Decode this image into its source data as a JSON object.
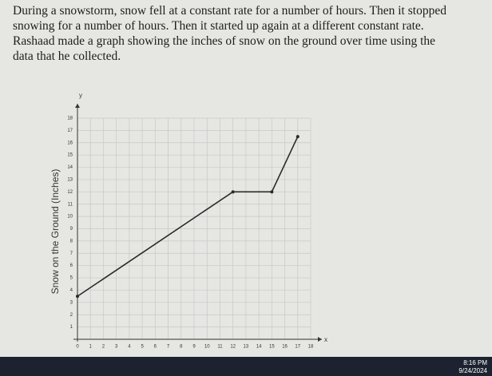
{
  "problem": {
    "lines": [
      "During a snowstorm, snow fell at a constant rate for a number of hours. Then it stopped",
      "snowing for a number of hours. Then it started up again at a different constant rate.",
      "Rashaad made a graph showing the inches of snow on the ground over time using the",
      "data that he collected."
    ]
  },
  "chart_data": {
    "type": "line",
    "y_label": "Snow on the Ground (Inches)",
    "x_axis_name": "x",
    "y_axis_name": "y",
    "x": [
      0,
      12,
      15,
      17
    ],
    "series": [
      {
        "color": "#2a2a2a",
        "values": [
          3.5,
          12,
          12,
          16.5
        ]
      }
    ],
    "xlim": [
      0,
      18
    ],
    "ylim": [
      0,
      18
    ],
    "xticks": [
      0,
      1,
      2,
      3,
      4,
      5,
      6,
      7,
      8,
      9,
      10,
      11,
      12,
      13,
      14,
      15,
      16,
      17,
      18
    ],
    "yticks": [
      1,
      2,
      3,
      4,
      5,
      6,
      7,
      8,
      9,
      10,
      11,
      12,
      13,
      14,
      15,
      16,
      17,
      18
    ],
    "grid": true
  },
  "taskbar": {
    "time": "8:16 PM",
    "date": "9/24/2024"
  }
}
